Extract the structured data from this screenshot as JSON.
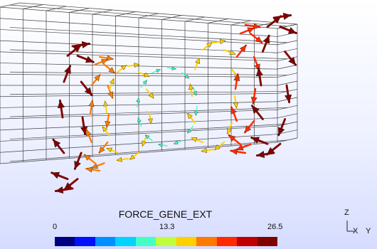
{
  "legend": {
    "title": "FORCE_GENE_EXT",
    "min_label": "0",
    "mid_label": "13.3",
    "max_label": "26.5",
    "colors": [
      "#000080",
      "#0010ff",
      "#0090ff",
      "#00d4ff",
      "#44ffc4",
      "#bfff3a",
      "#ffd000",
      "#ff7a00",
      "#ff2a00",
      "#c00000",
      "#800000"
    ]
  },
  "triad": {
    "z_label": "Z",
    "x_label": "X",
    "y_label": "Y"
  },
  "scene": {
    "mesh_color": "#444444",
    "vector_field": "FORCE_GENE_EXT"
  }
}
